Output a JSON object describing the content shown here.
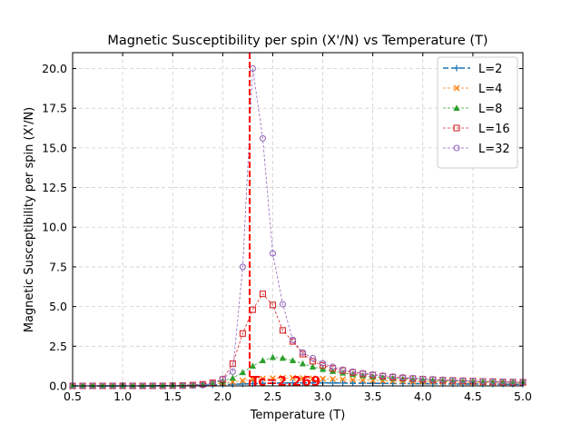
{
  "chart_data": {
    "type": "line",
    "title": "Magnetic Susceptibility per spin (X'/N) vs Temperature (T)",
    "xlabel": "Temperature (T)",
    "ylabel": "Magnetic Susceptibility per spin (X'/N)",
    "xlim": [
      0.5,
      5.0
    ],
    "ylim": [
      0,
      21
    ],
    "xticks": [
      "0.5",
      "1.0",
      "1.5",
      "2.0",
      "2.5",
      "3.0",
      "3.5",
      "4.0",
      "4.5",
      "5.0"
    ],
    "yticks": [
      "0.0",
      "2.5",
      "5.0",
      "7.5",
      "10.0",
      "12.5",
      "15.0",
      "17.5",
      "20.0"
    ],
    "grid": true,
    "legend_position": "top-right",
    "annotation": {
      "text": "Tc=2.269",
      "x": 2.269,
      "color": "#ff0000"
    },
    "x": [
      0.5,
      0.6,
      0.7,
      0.8,
      0.9,
      1.0,
      1.1,
      1.2,
      1.3,
      1.4,
      1.5,
      1.6,
      1.7,
      1.8,
      1.9,
      2.0,
      2.1,
      2.2,
      2.3,
      2.4,
      2.5,
      2.6,
      2.7,
      2.8,
      2.9,
      3.0,
      3.1,
      3.2,
      3.3,
      3.4,
      3.5,
      3.6,
      3.7,
      3.8,
      3.9,
      4.0,
      4.1,
      4.2,
      4.3,
      4.4,
      4.5,
      4.6,
      4.7,
      4.8,
      4.9,
      5.0
    ],
    "series": [
      {
        "name": "L=2",
        "color": "#1f77b4",
        "marker": "plus",
        "dash": "6,3",
        "width": 1.6,
        "values": [
          0,
          0,
          0,
          0,
          0,
          0,
          0,
          0,
          0.01,
          0.01,
          0.01,
          0.02,
          0.03,
          0.04,
          0.06,
          0.08,
          0.1,
          0.12,
          0.14,
          0.16,
          0.17,
          0.18,
          0.19,
          0.19,
          0.19,
          0.19,
          0.18,
          0.18,
          0.17,
          0.17,
          0.16,
          0.16,
          0.15,
          0.15,
          0.14,
          0.14,
          0.13,
          0.13,
          0.12,
          0.12,
          0.12,
          0.11,
          0.11,
          0.11,
          0.1,
          0.1
        ]
      },
      {
        "name": "L=4",
        "color": "#ff7f0e",
        "marker": "x",
        "dash": "3,2",
        "width": 0.8,
        "values": [
          0,
          0,
          0,
          0,
          0,
          0,
          0,
          0,
          0.01,
          0.01,
          0.02,
          0.03,
          0.05,
          0.08,
          0.12,
          0.18,
          0.25,
          0.33,
          0.4,
          0.45,
          0.48,
          0.5,
          0.5,
          0.49,
          0.47,
          0.45,
          0.43,
          0.41,
          0.39,
          0.37,
          0.35,
          0.33,
          0.31,
          0.3,
          0.28,
          0.27,
          0.26,
          0.25,
          0.24,
          0.23,
          0.22,
          0.21,
          0.2,
          0.2,
          0.19,
          0.18
        ]
      },
      {
        "name": "L=8",
        "color": "#2ca02c",
        "marker": "triangle",
        "dash": "3,2",
        "width": 0.8,
        "values": [
          0,
          0,
          0,
          0,
          0,
          0,
          0,
          0,
          0,
          0.01,
          0.02,
          0.03,
          0.05,
          0.1,
          0.18,
          0.3,
          0.5,
          0.85,
          1.25,
          1.6,
          1.8,
          1.75,
          1.6,
          1.4,
          1.2,
          1.05,
          0.92,
          0.82,
          0.73,
          0.65,
          0.58,
          0.53,
          0.48,
          0.44,
          0.41,
          0.38,
          0.35,
          0.33,
          0.31,
          0.29,
          0.28,
          0.26,
          0.25,
          0.24,
          0.23,
          0.22
        ]
      },
      {
        "name": "L=16",
        "color": "#d62728",
        "marker": "square",
        "dash": "3,2",
        "width": 0.8,
        "values": [
          0,
          0,
          0,
          0,
          0,
          0,
          0,
          0,
          0,
          0,
          0.01,
          0.02,
          0.05,
          0.1,
          0.2,
          0.4,
          1.4,
          3.3,
          4.8,
          5.8,
          5.1,
          3.5,
          2.8,
          2.0,
          1.55,
          1.3,
          1.1,
          0.97,
          0.85,
          0.76,
          0.68,
          0.61,
          0.55,
          0.5,
          0.46,
          0.42,
          0.39,
          0.36,
          0.34,
          0.32,
          0.3,
          0.28,
          0.27,
          0.25,
          0.24,
          0.23
        ]
      },
      {
        "name": "L=32",
        "color": "#9467bd",
        "marker": "circle",
        "dash": "3,2",
        "width": 0.8,
        "values": [
          0,
          0,
          0,
          0,
          0,
          0,
          0,
          0,
          0,
          0,
          0,
          0.01,
          0.02,
          0.05,
          0.15,
          0.45,
          0.9,
          7.5,
          20.0,
          15.6,
          8.35,
          5.15,
          2.9,
          2.1,
          1.75,
          1.42,
          1.2,
          1.02,
          0.9,
          0.8,
          0.72,
          0.65,
          0.59,
          0.54,
          0.49,
          0.45,
          0.42,
          0.39,
          0.36,
          0.34,
          0.32,
          0.3,
          0.28,
          0.27,
          0.25,
          0.24
        ]
      }
    ]
  }
}
